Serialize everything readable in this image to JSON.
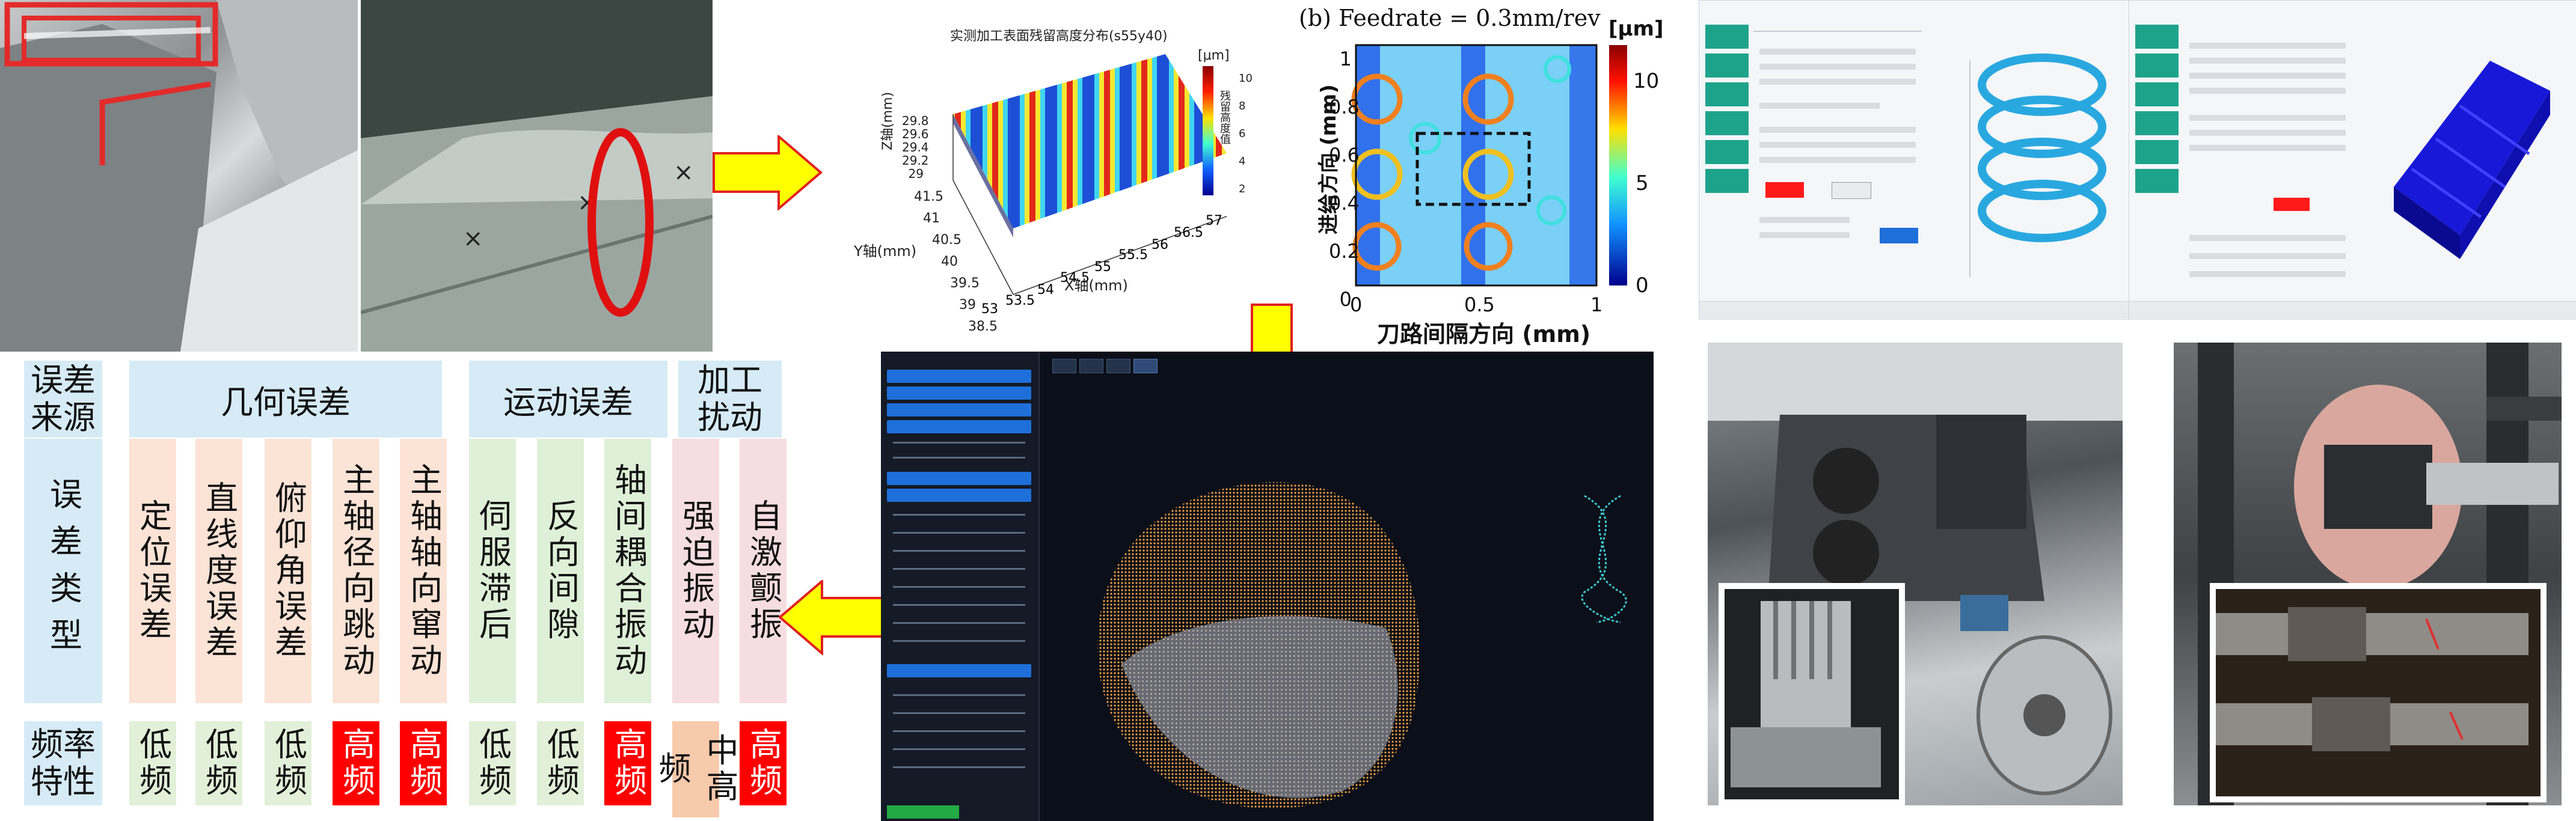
{
  "surface_3d": {
    "title": "实测加工表面残留高度分布(s55y40)",
    "z_label": "Z轴(mm)",
    "y_label": "Y轴(mm)",
    "x_label": "X轴(mm)",
    "z_ticks": [
      "29.8",
      "29.6",
      "29.4",
      "29.2",
      "29"
    ],
    "y_ticks": [
      "41.5",
      "41",
      "40.5",
      "40",
      "39.5",
      "39",
      "38.5"
    ],
    "x_ticks": [
      "53",
      "53.5",
      "54",
      "54.5",
      "55",
      "55.5",
      "56",
      "56.5",
      "57"
    ],
    "colorbar_unit": "[μm]",
    "colorbar_label": "残留高度值",
    "colorbar_ticks": [
      "10",
      "8",
      "6",
      "4",
      "2"
    ]
  },
  "surface_map": {
    "title": "(b) Feedrate = 0.3mm/rev",
    "y_label": "进给方向 (mm)",
    "x_label": "刀路间隔方向 (mm)",
    "y_ticks": [
      "1",
      "0.8",
      "0.6",
      "0.4",
      "0.2",
      "0"
    ],
    "x_ticks": [
      "0",
      "0.5",
      "1"
    ],
    "colorbar_unit": "[μm]",
    "colorbar_ticks": [
      "10",
      "5",
      "0"
    ]
  },
  "error_table": {
    "col_header": "误差来源",
    "row_type_header": "误差类型",
    "row_freq_header": "频率特性",
    "groups": [
      {
        "name": "几何误差",
        "items": [
          "定位误差",
          "直线度误差",
          "俯仰角误差",
          "主轴径向跳动",
          "主轴轴向窜动"
        ],
        "freq": [
          "低频",
          "低频",
          "低频",
          "高频",
          "高频"
        ]
      },
      {
        "name": "运动误差",
        "items": [
          "伺服滞后",
          "反向间隙",
          "轴间耦合振动"
        ],
        "freq": [
          "低频",
          "低频",
          "高频"
        ]
      },
      {
        "name": "加工扰动",
        "items": [
          "强迫振动",
          "自激颤振"
        ],
        "freq": [
          "中高频",
          "高频"
        ]
      }
    ]
  },
  "colors": {
    "arrow_fill": "#ffff00",
    "arrow_stroke": "#e02020",
    "highlight_red": "#ff0000",
    "ui_green": "#1ea38b",
    "ui_red_button": "#ff1a1a",
    "ui_blue_button": "#1e6fd9",
    "point_cloud": "#f0a040",
    "helix": "#29a8e0",
    "gear": "#1010e0"
  },
  "sim_window": {
    "tabs": [
      "",
      "",
      "",
      ""
    ]
  }
}
